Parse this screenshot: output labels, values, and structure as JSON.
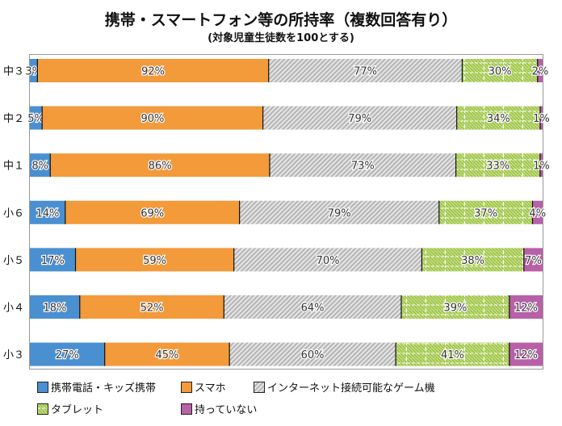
{
  "chart_data": {
    "type": "bar",
    "orientation": "horizontal",
    "stacked": true,
    "normalized_per_row": true,
    "title": "携帯・スマートフォン等の所持率（複数回答有り）",
    "subtitle": "(対象児童生徒数を100とする)",
    "xlabel": "",
    "ylabel": "",
    "grid": false,
    "legend_position": "bottom",
    "categories": [
      "中３",
      "中２",
      "中１",
      "小６",
      "小５",
      "小４",
      "小３"
    ],
    "series": [
      {
        "name": "携帯電話・キッズ携帯",
        "color": "#4a90d1",
        "pattern": "solid",
        "values": [
          3,
          5,
          8,
          14,
          17,
          18,
          27
        ]
      },
      {
        "name": "スマホ",
        "color": "#f39a3a",
        "pattern": "solid",
        "values": [
          92,
          90,
          86,
          69,
          59,
          52,
          45
        ]
      },
      {
        "name": "インターネット接続可能なゲーム機",
        "color": "#c8c8c8",
        "pattern": "diagonal",
        "values": [
          77,
          79,
          73,
          79,
          70,
          64,
          60
        ]
      },
      {
        "name": "タブレット",
        "color": "#b8d86a",
        "pattern": "diagonal-grid",
        "values": [
          30,
          34,
          33,
          37,
          38,
          39,
          41
        ]
      },
      {
        "name": "持っていない",
        "color": "#b860a8",
        "pattern": "solid",
        "values": [
          2,
          1,
          1,
          4,
          7,
          12,
          12
        ]
      }
    ],
    "value_suffix": "%"
  }
}
